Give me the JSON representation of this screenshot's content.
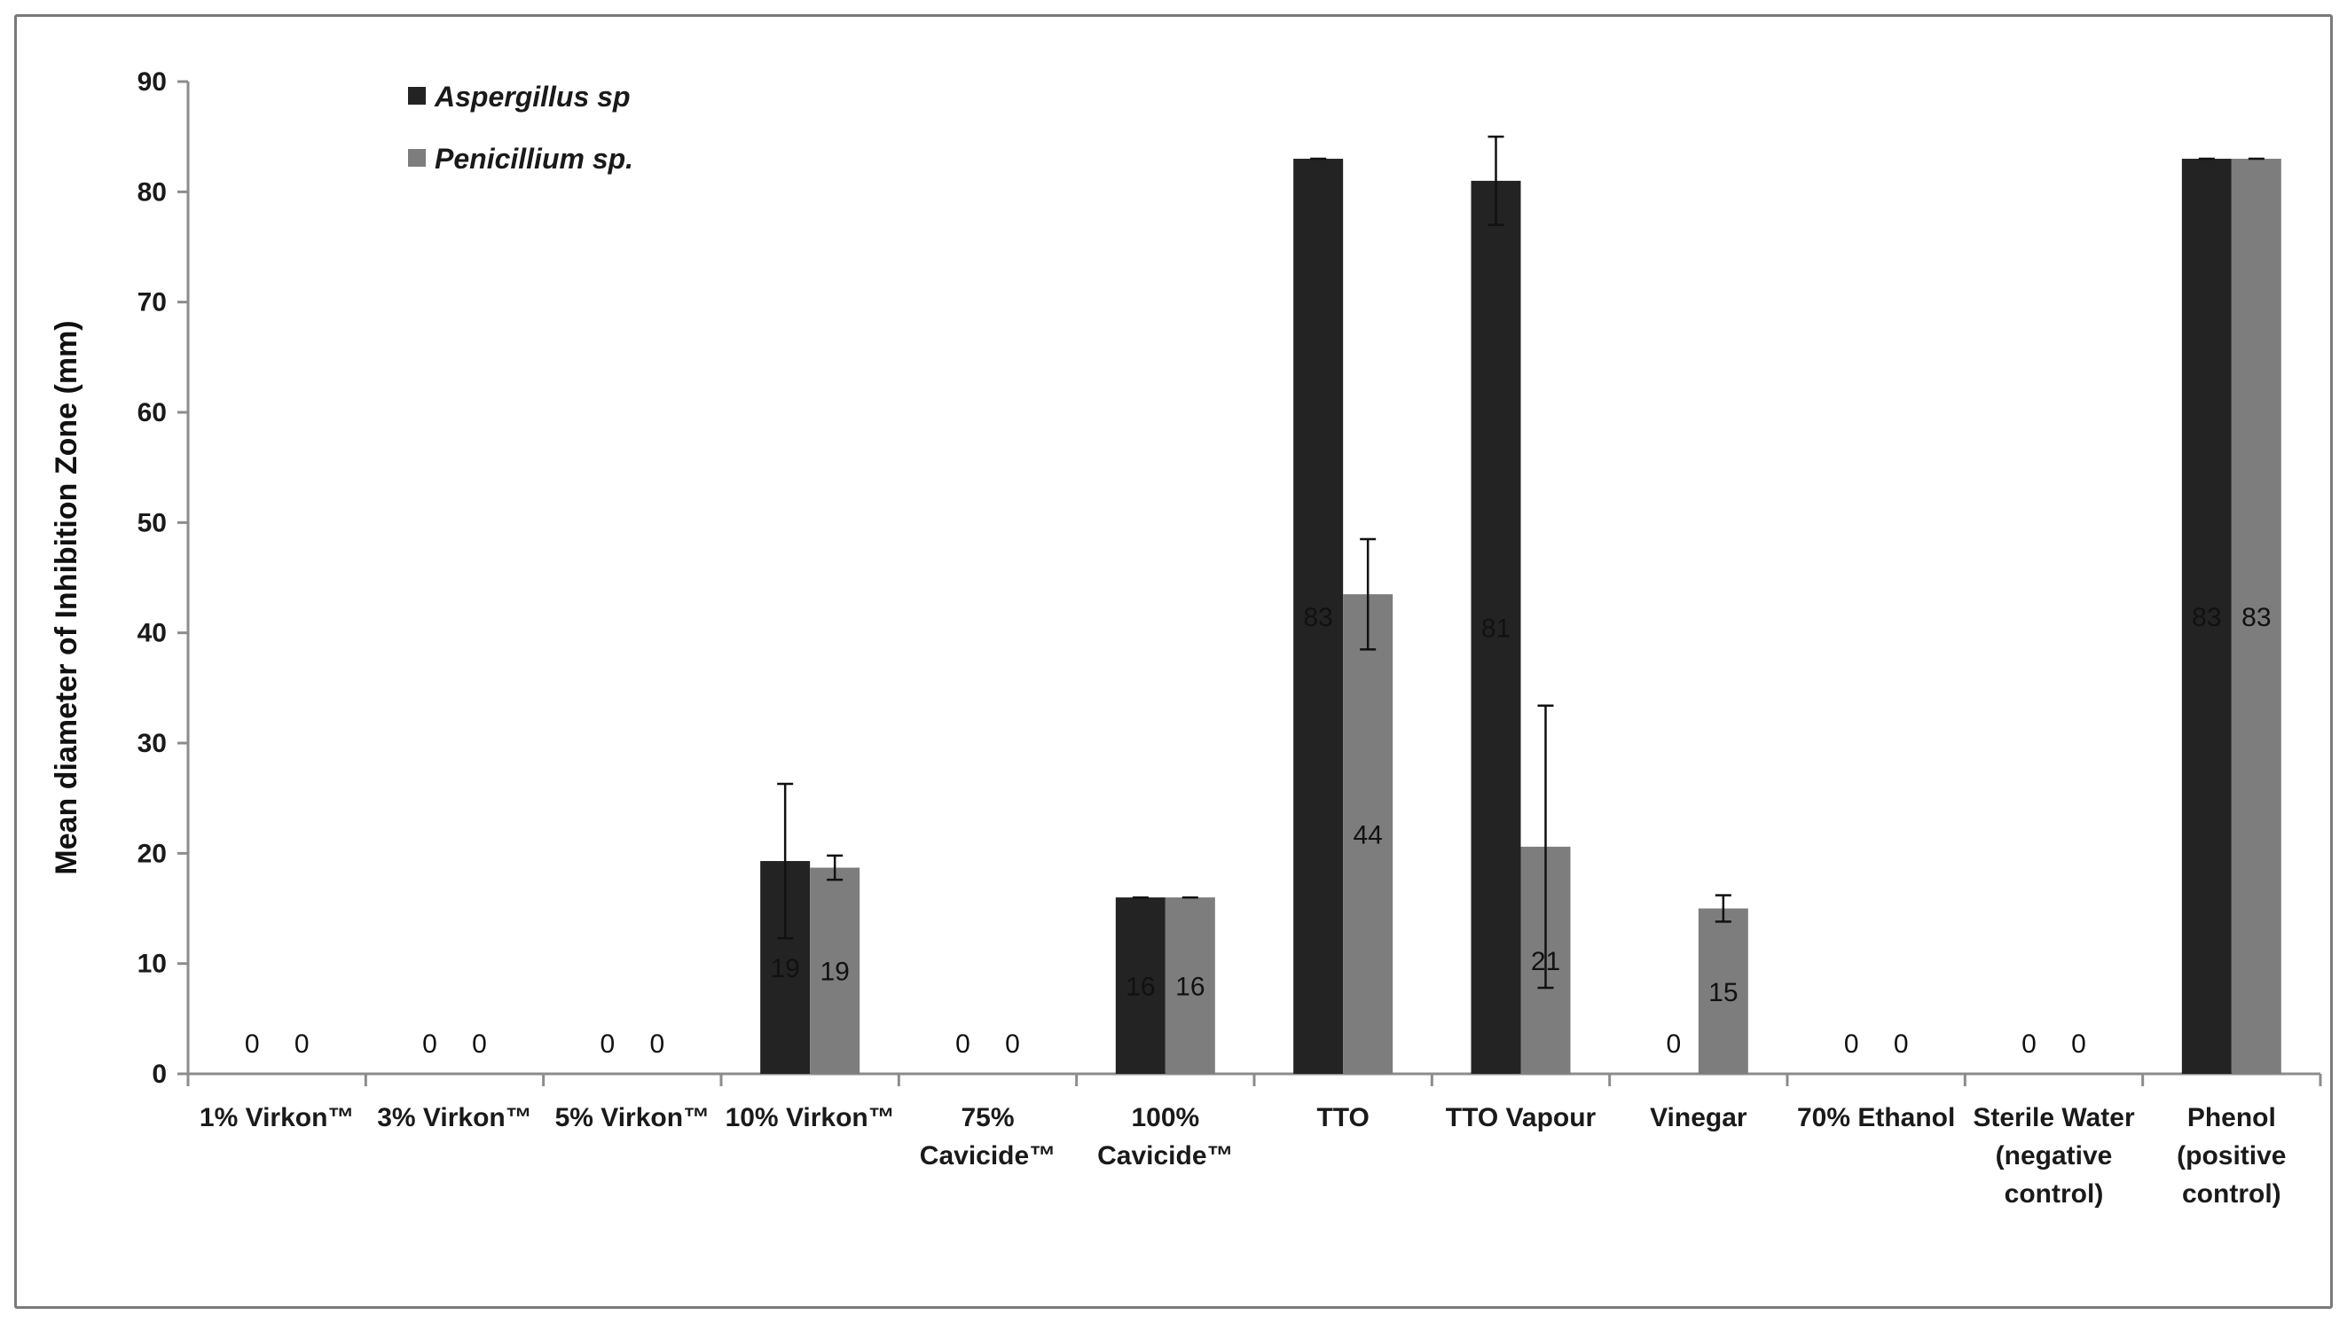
{
  "chart_data": {
    "type": "bar",
    "title": "",
    "ylabel": "Mean diameter of Inhibition Zone (mm)",
    "xlabel": "",
    "ylim": [
      0,
      90
    ],
    "yticks": [
      "0",
      "10",
      "20",
      "30",
      "40",
      "50",
      "60",
      "70",
      "80",
      "90"
    ],
    "grid": false,
    "legend_position": "top-left",
    "categories": [
      [
        "1% Virkon™"
      ],
      [
        "3% Virkon™"
      ],
      [
        "5% Virkon™"
      ],
      [
        "10% Virkon™"
      ],
      [
        "75%",
        "Cavicide™"
      ],
      [
        "100%",
        "Cavicide™"
      ],
      [
        "TTO"
      ],
      [
        "TTO Vapour"
      ],
      [
        "Vinegar"
      ],
      [
        "70% Ethanol"
      ],
      [
        "Sterile Water",
        "(negative",
        "control)"
      ],
      [
        "Phenol",
        "(positive",
        "control)"
      ]
    ],
    "series": [
      {
        "name": "Aspergillus sp",
        "color": "#232323",
        "values": [
          0,
          0,
          0,
          19.3,
          0,
          16,
          83,
          81,
          0,
          0,
          0,
          83
        ],
        "error": [
          0,
          0,
          0,
          7,
          0,
          0,
          0,
          4,
          0,
          0,
          0,
          0
        ],
        "labels": [
          "0",
          "0",
          "0",
          "19",
          "0",
          "16",
          "83",
          "81",
          "0",
          "0",
          "0",
          "83"
        ]
      },
      {
        "name": "Penicillium sp.",
        "color": "#7d7d7d",
        "values": [
          0,
          0,
          0,
          18.7,
          0,
          16,
          43.5,
          20.6,
          15,
          0,
          0,
          83
        ],
        "error": [
          0,
          0,
          0,
          1.1,
          0,
          0,
          5,
          12.8,
          1.2,
          0,
          0,
          0
        ],
        "labels": [
          "0",
          "0",
          "0",
          "19",
          "0",
          "16",
          "44",
          "21",
          "15",
          "0",
          "0",
          "83"
        ]
      }
    ]
  }
}
